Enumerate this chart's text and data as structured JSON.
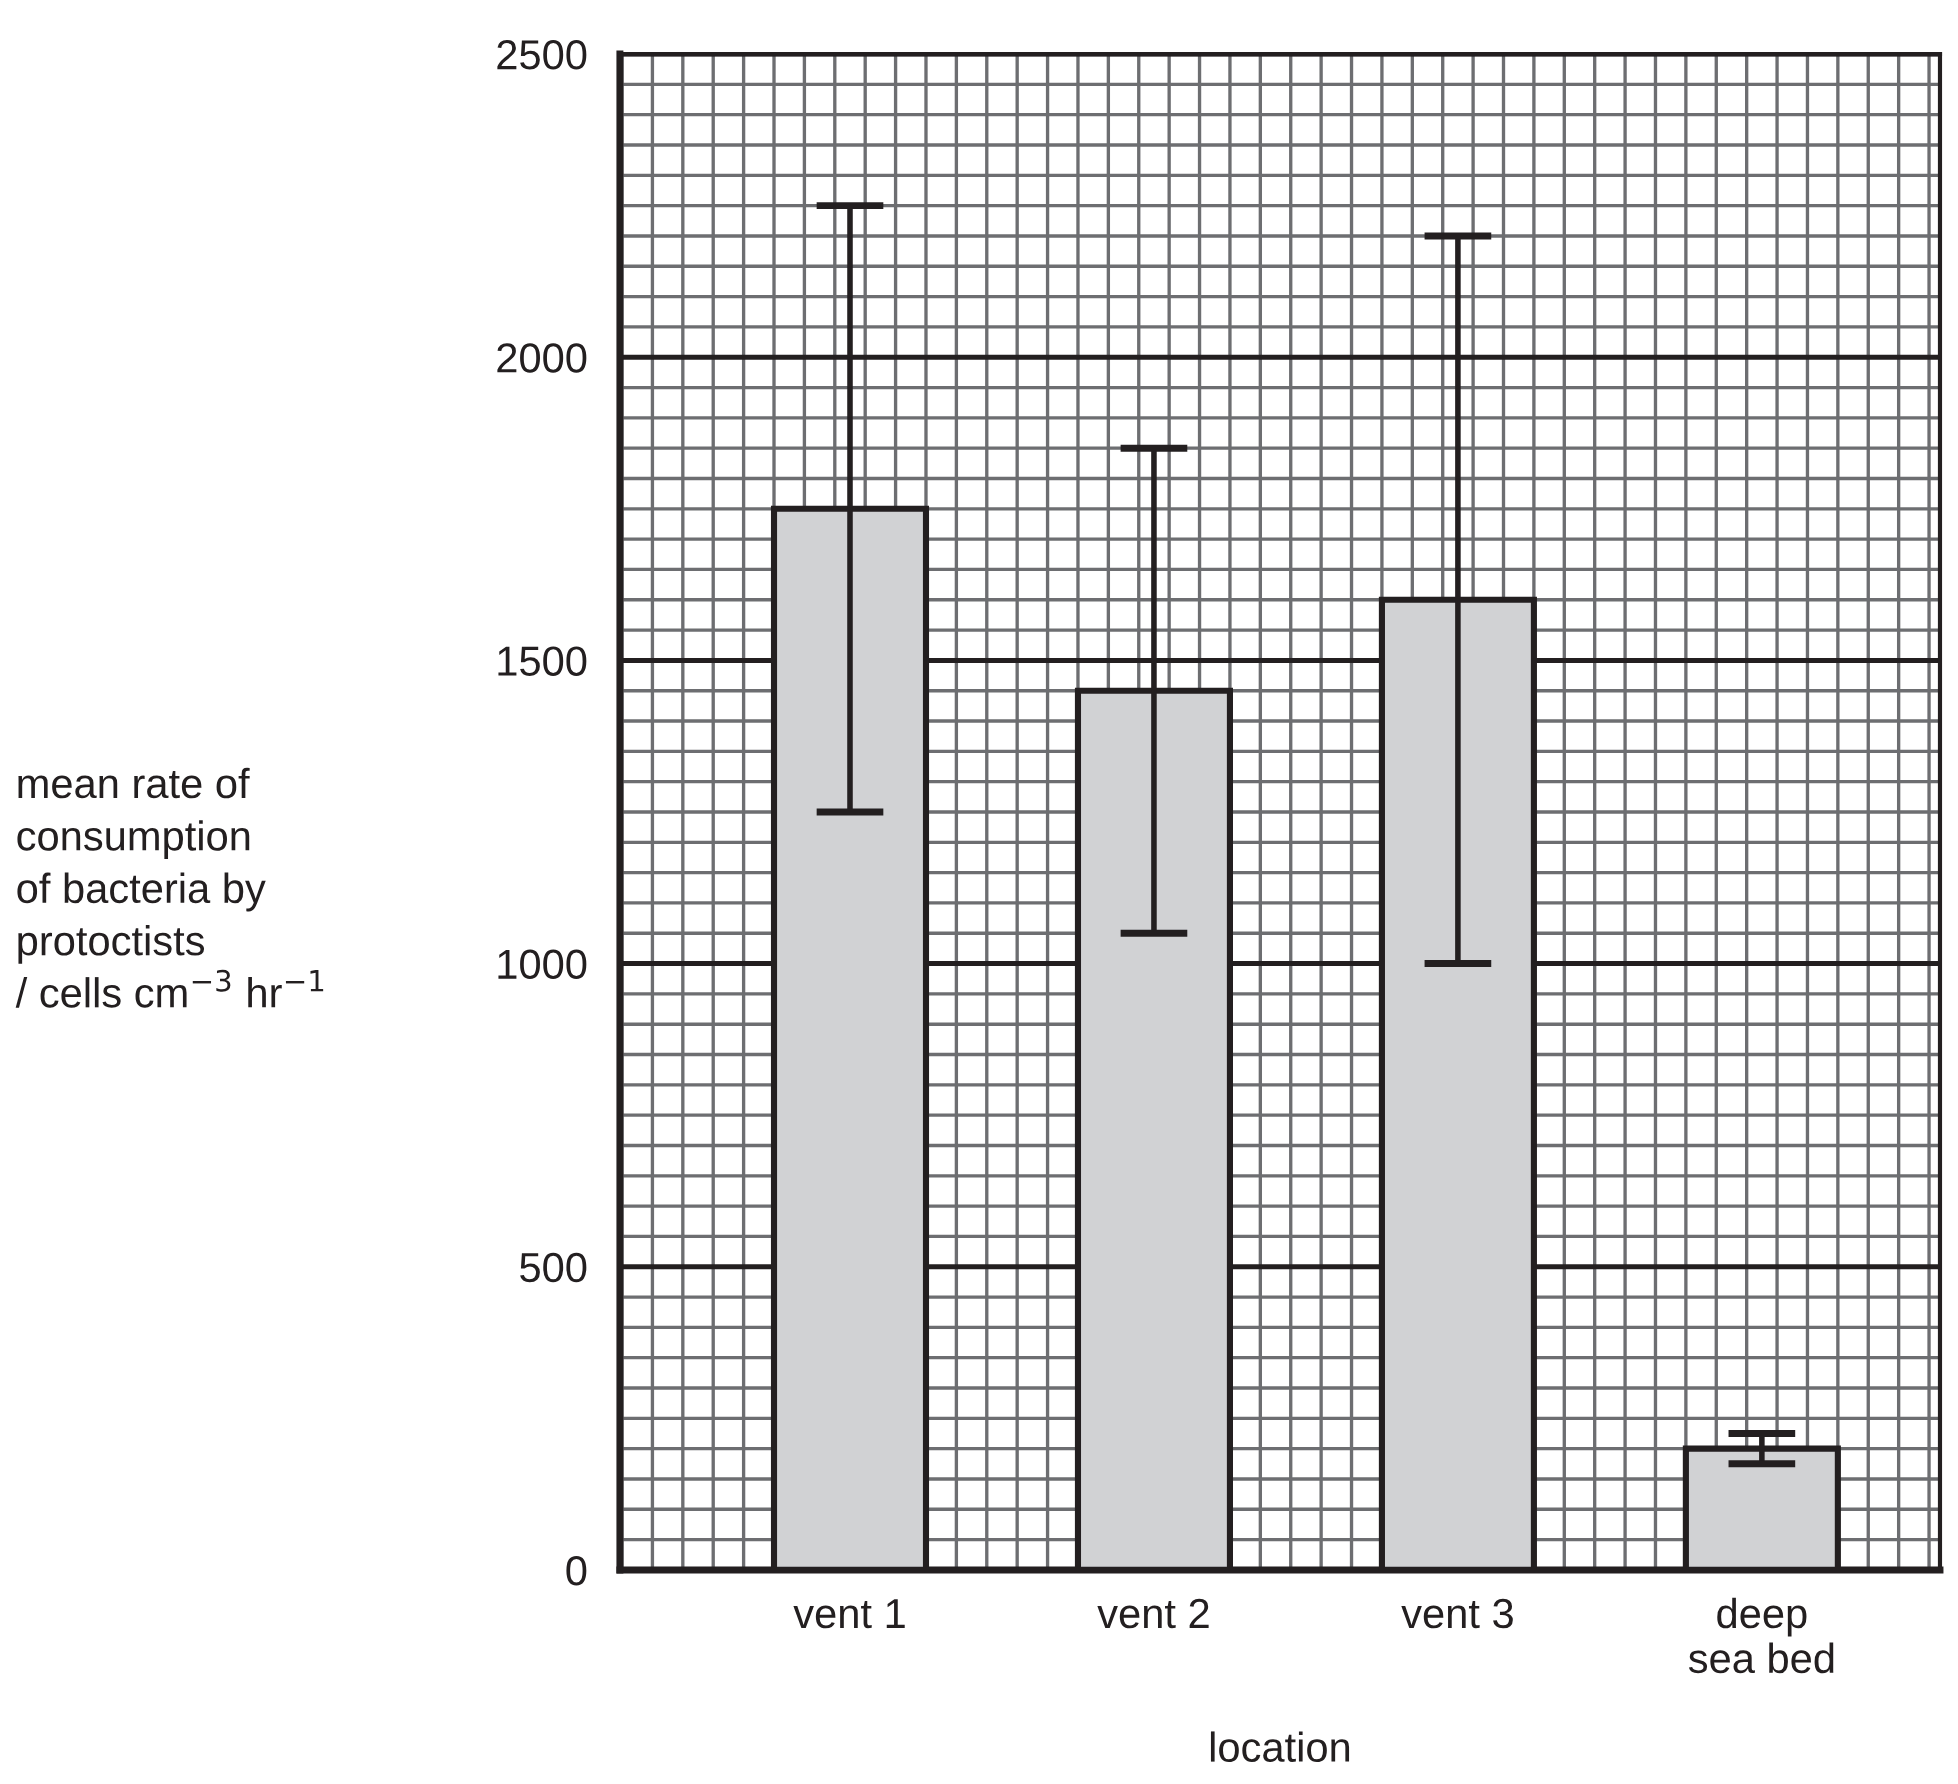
{
  "chart_data": {
    "type": "bar",
    "categories": [
      "vent 1",
      "vent 2",
      "vent 3",
      "deep\nsea bed"
    ],
    "values": [
      1750,
      1450,
      1600,
      200
    ],
    "errors": [
      500,
      400,
      600,
      25
    ],
    "color": "#d1d2d4",
    "xlabel": "location",
    "ylabel": "mean rate of\nconsumption\nof bacteria by\nprotoctists\n/ cells cm$^{−3}$ hr$^{−1}$",
    "ylim": [
      0,
      2500
    ],
    "yticks": [
      0,
      500,
      1000,
      1500,
      2000,
      2500
    ],
    "grid": true
  }
}
